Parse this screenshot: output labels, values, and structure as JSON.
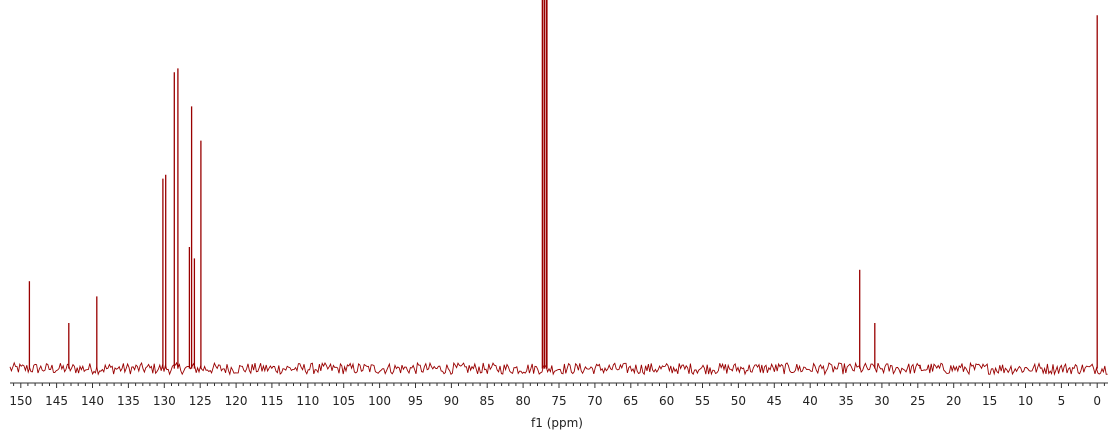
{
  "chart_data": {
    "type": "line",
    "title": "",
    "xlabel": "f1 (ppm)",
    "ylabel": "",
    "xlim": [
      151.5,
      -1.5
    ],
    "x_reversed": true,
    "ylim": [
      0,
      100
    ],
    "grid": false,
    "line_color": "#990000",
    "baseline_level": 3,
    "noise_amplitude": 1.5,
    "xticks": [
      150,
      145,
      140,
      135,
      130,
      125,
      120,
      115,
      110,
      105,
      100,
      95,
      90,
      85,
      80,
      75,
      70,
      65,
      60,
      55,
      50,
      45,
      40,
      35,
      30,
      25,
      20,
      15,
      10,
      5,
      0
    ],
    "tick_labels": [
      "150",
      "145",
      "140",
      "135",
      "130",
      "125",
      "120",
      "115",
      "110",
      "105",
      "100",
      "95",
      "90",
      "85",
      "80",
      "75",
      "70",
      "65",
      "60",
      "55",
      "50",
      "45",
      "40",
      "35",
      "30",
      "25",
      "20",
      "15",
      "10",
      "5",
      "0"
    ],
    "peaks": [
      {
        "x": 148.8,
        "y": 26
      },
      {
        "x": 143.3,
        "y": 15
      },
      {
        "x": 139.4,
        "y": 22
      },
      {
        "x": 130.2,
        "y": 53
      },
      {
        "x": 129.8,
        "y": 54
      },
      {
        "x": 128.6,
        "y": 81
      },
      {
        "x": 128.1,
        "y": 82
      },
      {
        "x": 126.5,
        "y": 35
      },
      {
        "x": 126.2,
        "y": 72
      },
      {
        "x": 125.8,
        "y": 32
      },
      {
        "x": 124.9,
        "y": 63
      },
      {
        "x": 77.3,
        "y": 100
      },
      {
        "x": 77.0,
        "y": 100
      },
      {
        "x": 76.7,
        "y": 100
      },
      {
        "x": 33.1,
        "y": 29
      },
      {
        "x": 31.0,
        "y": 15
      },
      {
        "x": 24.7,
        "y": 4
      },
      {
        "x": 0.0,
        "y": 96
      }
    ]
  }
}
